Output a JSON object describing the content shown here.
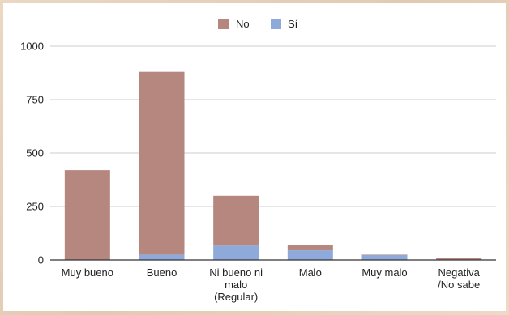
{
  "chart_data": {
    "type": "bar",
    "stacked": true,
    "categories": [
      [
        "Muy bueno"
      ],
      [
        "Bueno"
      ],
      [
        "Ni bueno ni",
        "malo",
        "(Regular)"
      ],
      [
        "Malo"
      ],
      [
        "Muy malo"
      ],
      [
        "Negativa",
        "/No sabe"
      ]
    ],
    "series": [
      {
        "name": "Sí",
        "color": "#8eaadb",
        "values": [
          0,
          25,
          67,
          45,
          23,
          0
        ]
      },
      {
        "name": "No",
        "color": "#b5877f",
        "values": [
          420,
          855,
          233,
          25,
          2,
          11
        ]
      }
    ],
    "legend_order": [
      "No",
      "Sí"
    ],
    "legend_position": "top-center",
    "ylim": [
      0,
      1000
    ],
    "yticks": [
      0,
      250,
      500,
      750,
      1000
    ],
    "grid": true,
    "title": "",
    "xlabel": "",
    "ylabel": ""
  }
}
